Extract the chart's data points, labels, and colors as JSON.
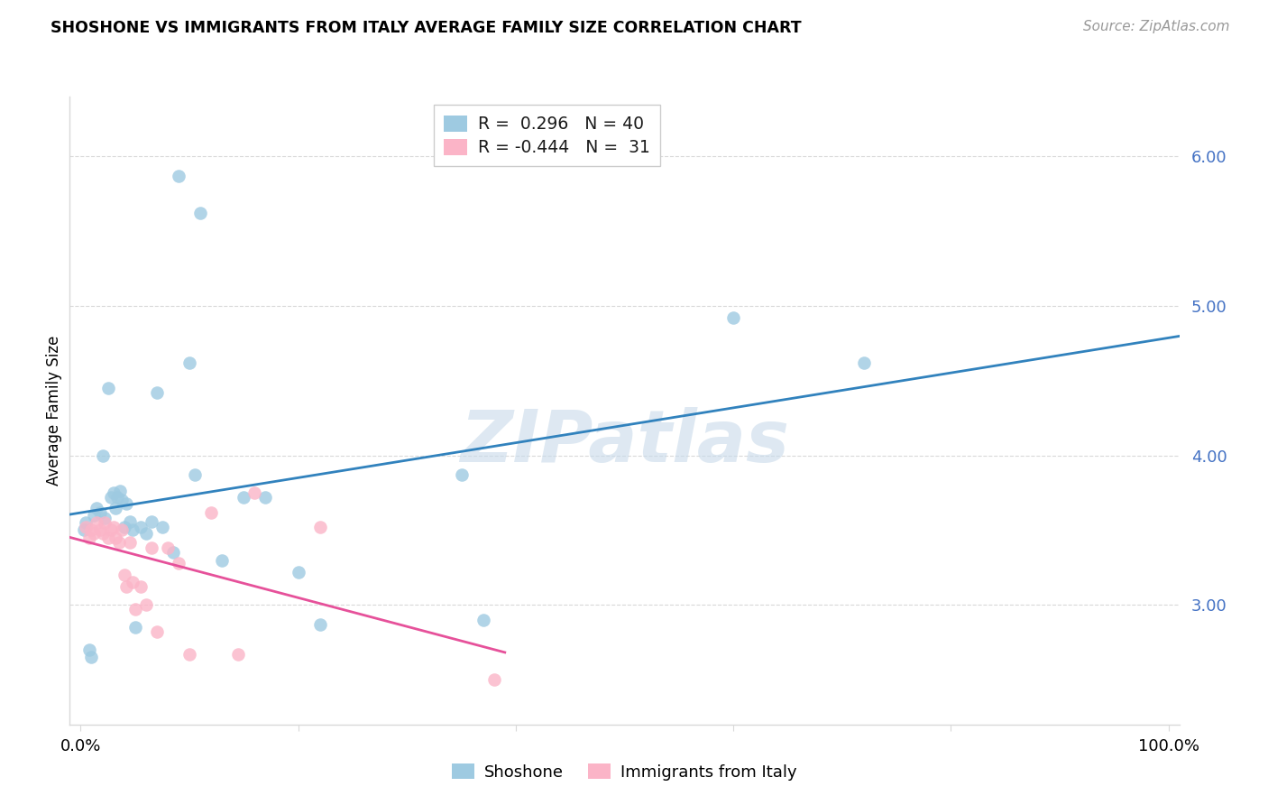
{
  "title": "SHOSHONE VS IMMIGRANTS FROM ITALY AVERAGE FAMILY SIZE CORRELATION CHART",
  "source": "Source: ZipAtlas.com",
  "ylabel": "Average Family Size",
  "ytick_values": [
    3.0,
    4.0,
    5.0,
    6.0
  ],
  "ytick_labels": [
    "3.00",
    "4.00",
    "5.00",
    "6.00"
  ],
  "ylim": [
    2.2,
    6.4
  ],
  "xlim": [
    -0.01,
    1.01
  ],
  "legend_blue_r": "0.296",
  "legend_blue_n": "40",
  "legend_pink_r": "-0.444",
  "legend_pink_n": "31",
  "legend_label_blue": "Shoshone",
  "legend_label_pink": "Immigrants from Italy",
  "blue_scatter_color": "#9ecae1",
  "pink_scatter_color": "#fbb4c7",
  "blue_line_color": "#3182bd",
  "pink_line_color": "#e6519a",
  "grid_color": "#d9d9d9",
  "bg_color": "#ffffff",
  "title_color": "#000000",
  "source_color": "#999999",
  "ytick_color": "#4472c4",
  "watermark_text": "ZIPatlas",
  "watermark_color": "#c8daea",
  "shoshone_x": [
    0.003,
    0.005,
    0.008,
    0.01,
    0.012,
    0.015,
    0.018,
    0.02,
    0.022,
    0.025,
    0.028,
    0.03,
    0.032,
    0.034,
    0.036,
    0.038,
    0.04,
    0.042,
    0.045,
    0.048,
    0.05,
    0.055,
    0.06,
    0.065,
    0.07,
    0.075,
    0.085,
    0.09,
    0.1,
    0.105,
    0.11,
    0.13,
    0.15,
    0.17,
    0.2,
    0.22,
    0.35,
    0.37,
    0.6,
    0.72
  ],
  "shoshone_y": [
    3.5,
    3.55,
    2.7,
    2.65,
    3.6,
    3.65,
    3.62,
    4.0,
    3.58,
    4.45,
    3.72,
    3.75,
    3.65,
    3.72,
    3.76,
    3.7,
    3.52,
    3.68,
    3.56,
    3.5,
    2.85,
    3.52,
    3.48,
    3.56,
    4.42,
    3.52,
    3.35,
    5.87,
    4.62,
    3.87,
    5.62,
    3.3,
    3.72,
    3.72,
    3.22,
    2.87,
    3.87,
    2.9,
    4.92,
    4.62
  ],
  "italy_x": [
    0.005,
    0.008,
    0.01,
    0.012,
    0.015,
    0.018,
    0.02,
    0.022,
    0.025,
    0.028,
    0.03,
    0.032,
    0.035,
    0.038,
    0.04,
    0.042,
    0.045,
    0.048,
    0.05,
    0.055,
    0.06,
    0.065,
    0.07,
    0.08,
    0.09,
    0.1,
    0.12,
    0.145,
    0.16,
    0.22,
    0.38
  ],
  "italy_y": [
    3.52,
    3.45,
    3.5,
    3.48,
    3.55,
    3.5,
    3.48,
    3.55,
    3.45,
    3.5,
    3.52,
    3.45,
    3.42,
    3.5,
    3.2,
    3.12,
    3.42,
    3.15,
    2.97,
    3.12,
    3.0,
    3.38,
    2.82,
    3.38,
    3.28,
    2.67,
    3.62,
    2.67,
    3.75,
    3.52,
    2.5
  ]
}
